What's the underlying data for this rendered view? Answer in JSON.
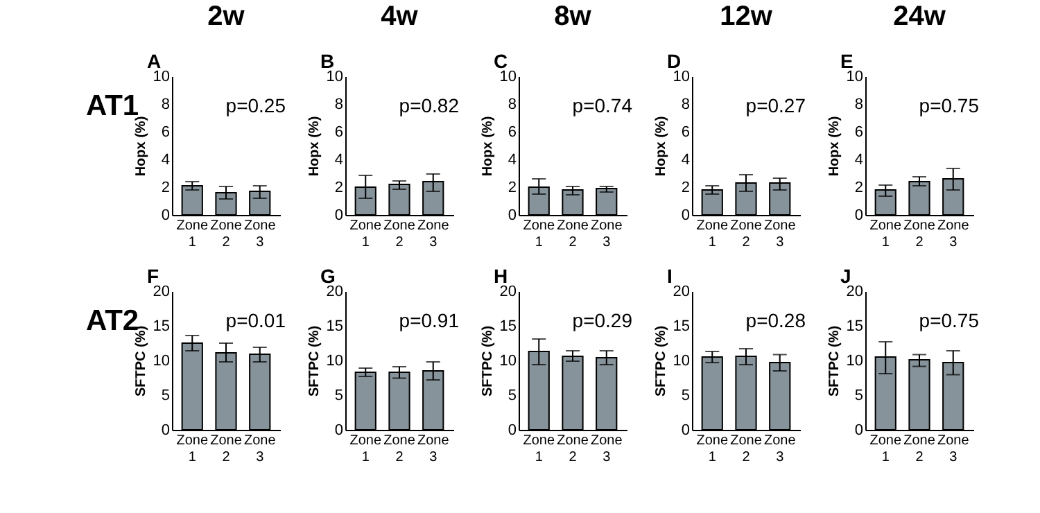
{
  "chart_data": [
    {
      "type": "bar",
      "title": "2w",
      "ylabel": "Hopx (%)",
      "annotations": [
        "A",
        "p=0.25",
        "AT1"
      ],
      "categories": [
        "Zone 1",
        "Zone 2",
        "Zone 3"
      ],
      "values": [
        2.1,
        1.6,
        1.7
      ],
      "errors": [
        [
          1.8,
          2.4
        ],
        [
          1.15,
          2.05
        ],
        [
          1.2,
          2.1
        ]
      ],
      "color": "#87939a",
      "ylim": [
        0,
        10
      ],
      "yticks": [
        0,
        2,
        4,
        6,
        8,
        10
      ]
    },
    {
      "type": "bar",
      "title": "4w",
      "ylabel": "Hopx (%)",
      "annotations": [
        "B",
        "p=0.82"
      ],
      "categories": [
        "Zone 1",
        "Zone 2",
        "Zone 3"
      ],
      "values": [
        2.0,
        2.2,
        2.4
      ],
      "errors": [
        [
          1.2,
          2.85
        ],
        [
          1.85,
          2.45
        ],
        [
          1.7,
          2.95
        ]
      ],
      "color": "#87939a",
      "ylim": [
        0,
        10
      ],
      "yticks": [
        0,
        2,
        4,
        6,
        8,
        10
      ]
    },
    {
      "type": "bar",
      "title": "8w",
      "ylabel": "Hopx (%)",
      "annotations": [
        "C",
        "p=0.74"
      ],
      "categories": [
        "Zone 1",
        "Zone 2",
        "Zone 3"
      ],
      "values": [
        2.0,
        1.8,
        1.9
      ],
      "errors": [
        [
          1.5,
          2.6
        ],
        [
          1.45,
          2.05
        ],
        [
          1.65,
          2.05
        ]
      ],
      "color": "#87939a",
      "ylim": [
        0,
        10
      ],
      "yticks": [
        0,
        2,
        4,
        6,
        8,
        10
      ]
    },
    {
      "type": "bar",
      "title": "12w",
      "ylabel": "Hopx (%)",
      "annotations": [
        "D",
        "p=0.27"
      ],
      "categories": [
        "Zone 1",
        "Zone 2",
        "Zone 3"
      ],
      "values": [
        1.8,
        2.3,
        2.3
      ],
      "errors": [
        [
          1.5,
          2.1
        ],
        [
          1.7,
          2.9
        ],
        [
          1.8,
          2.65
        ]
      ],
      "color": "#87939a",
      "ylim": [
        0,
        10
      ],
      "yticks": [
        0,
        2,
        4,
        6,
        8,
        10
      ]
    },
    {
      "type": "bar",
      "title": "24w",
      "ylabel": "Hopx (%)",
      "annotations": [
        "E",
        "p=0.75"
      ],
      "categories": [
        "Zone 1",
        "Zone 2",
        "Zone 3"
      ],
      "values": [
        1.8,
        2.4,
        2.6
      ],
      "errors": [
        [
          1.35,
          2.15
        ],
        [
          2.1,
          2.75
        ],
        [
          1.8,
          3.35
        ]
      ],
      "color": "#87939a",
      "ylim": [
        0,
        10
      ],
      "yticks": [
        0,
        2,
        4,
        6,
        8,
        10
      ]
    },
    {
      "type": "bar",
      "ylabel": "SFTPC (%)",
      "annotations": [
        "F",
        "p=0.01",
        "AT2"
      ],
      "categories": [
        "Zone 1",
        "Zone 2",
        "Zone 3"
      ],
      "values": [
        12.5,
        11.1,
        10.9
      ],
      "errors": [
        [
          11.4,
          13.6
        ],
        [
          9.8,
          12.5
        ],
        [
          9.8,
          11.9
        ]
      ],
      "color": "#87939a",
      "ylim": [
        0,
        20
      ],
      "yticks": [
        0,
        5,
        10,
        15,
        20
      ]
    },
    {
      "type": "bar",
      "ylabel": "SFTPC (%)",
      "annotations": [
        "G",
        "p=0.91"
      ],
      "categories": [
        "Zone 1",
        "Zone 2",
        "Zone 3"
      ],
      "values": [
        8.3,
        8.3,
        8.5
      ],
      "errors": [
        [
          7.7,
          8.9
        ],
        [
          7.45,
          9.1
        ],
        [
          7.2,
          9.8
        ]
      ],
      "color": "#87939a",
      "ylim": [
        0,
        20
      ],
      "yticks": [
        0,
        5,
        10,
        15,
        20
      ]
    },
    {
      "type": "bar",
      "ylabel": "SFTPC (%)",
      "annotations": [
        "H",
        "p=0.29"
      ],
      "categories": [
        "Zone 1",
        "Zone 2",
        "Zone 3"
      ],
      "values": [
        11.3,
        10.6,
        10.4
      ],
      "errors": [
        [
          9.4,
          13.1
        ],
        [
          9.9,
          11.4
        ],
        [
          9.4,
          11.4
        ]
      ],
      "color": "#87939a",
      "ylim": [
        0,
        20
      ],
      "yticks": [
        0,
        5,
        10,
        15,
        20
      ]
    },
    {
      "type": "bar",
      "ylabel": "SFTPC (%)",
      "annotations": [
        "I",
        "p=0.28"
      ],
      "categories": [
        "Zone 1",
        "Zone 2",
        "Zone 3"
      ],
      "values": [
        10.5,
        10.6,
        9.7
      ],
      "errors": [
        [
          9.7,
          11.3
        ],
        [
          9.4,
          11.7
        ],
        [
          8.5,
          10.85
        ]
      ],
      "color": "#87939a",
      "ylim": [
        0,
        20
      ],
      "yticks": [
        0,
        5,
        10,
        15,
        20
      ]
    },
    {
      "type": "bar",
      "ylabel": "SFTPC (%)",
      "annotations": [
        "J",
        "p=0.75"
      ],
      "categories": [
        "Zone 1",
        "Zone 2",
        "Zone 3"
      ],
      "values": [
        10.5,
        10.1,
        9.7
      ],
      "errors": [
        [
          8.1,
          12.7
        ],
        [
          9.15,
          10.85
        ],
        [
          7.95,
          11.4
        ]
      ],
      "color": "#87939a",
      "ylim": [
        0,
        20
      ],
      "yticks": [
        0,
        5,
        10,
        15,
        20
      ]
    }
  ]
}
